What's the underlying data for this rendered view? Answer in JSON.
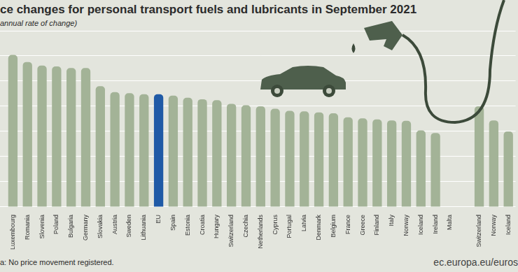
{
  "chart_data": {
    "type": "bar",
    "title": "ce changes for personal transport fuels and lubricants in September 2021",
    "subtitle": "annual rate of change)",
    "footnote": "a: No price movement registered.",
    "source": "ec.europa.eu/euros",
    "categories": [
      "Luxembourg",
      "Romania",
      "Slovenia",
      "Poland",
      "Bulgaria",
      "Germany",
      "Slovakia",
      "Austria",
      "Sweden",
      "Lithuania",
      "EU",
      "Spain",
      "Estonia",
      "Croatia",
      "Hungary",
      "Switzerland",
      "Czechia",
      "Netherlands",
      "Cyprus",
      "Portugal",
      "Latvia",
      "Denmark",
      "Belgium",
      "France",
      "Greece",
      "Finland",
      "Italy",
      "Norway",
      "Iceland",
      "Ireland",
      "Malta",
      null,
      "Switzerland",
      "Norway",
      "Iceland"
    ],
    "values": [
      30.2,
      28.8,
      28.1,
      27.9,
      27.6,
      27.6,
      24.0,
      22.8,
      22.6,
      22.4,
      22.4,
      22.1,
      21.7,
      21.4,
      21.2,
      20.5,
      20.2,
      20.0,
      19.5,
      19.1,
      19.0,
      18.8,
      18.6,
      17.8,
      17.6,
      17.4,
      17.2,
      17.1,
      15.2,
      14.7,
      0,
      null,
      20.0,
      17.2,
      15.0
    ],
    "colors": [
      "#a3b397",
      "#a3b397",
      "#a3b397",
      "#a3b397",
      "#a3b397",
      "#a3b397",
      "#a3b397",
      "#a3b397",
      "#a3b397",
      "#a3b397",
      "#1f5aa6",
      "#a3b397",
      "#a3b397",
      "#a3b397",
      "#a3b397",
      "#a3b397",
      "#a3b397",
      "#a3b397",
      "#a3b397",
      "#a3b397",
      "#a3b397",
      "#a3b397",
      "#a3b397",
      "#a3b397",
      "#a3b397",
      "#a3b397",
      "#a3b397",
      "#a3b397",
      "#a3b397",
      "#a3b397",
      "#a3b397",
      "#a3b397",
      "#a3b397",
      "#a3b397",
      "#a3b397"
    ],
    "ylim": [
      0,
      35
    ],
    "yticks": [
      0,
      5,
      10,
      15,
      20,
      25,
      30,
      35
    ],
    "grid": true,
    "tick_labels": "x"
  }
}
